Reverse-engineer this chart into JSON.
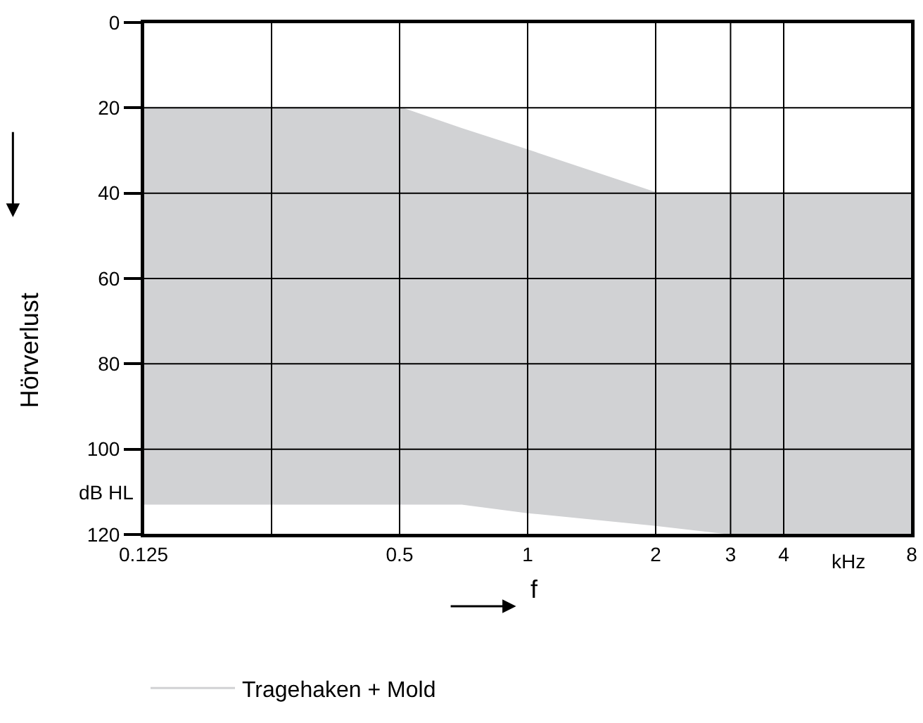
{
  "chart_data": {
    "type": "line",
    "xlabel": "f",
    "ylabel": "Hörverlust",
    "annotations": [
      "dB HL",
      "kHz"
    ],
    "x": [
      0.125,
      0.5,
      0.7,
      1,
      2,
      3,
      8
    ],
    "series": [
      {
        "name": "Tragehaken + Mold",
        "color": "#d1d2d4",
        "values": [
          20,
          20,
          25,
          30,
          40,
          40,
          40
        ],
        "lower": [
          20,
          20,
          25,
          30,
          40,
          40,
          40
        ],
        "upper": [
          113,
          113,
          113,
          115,
          118,
          120,
          120
        ]
      }
    ],
    "log": "x",
    "xlim": [
      0.125,
      8
    ],
    "xticks": [
      0.125,
      {
        "value": 0.25,
        "label": null
      },
      0.5,
      1,
      2,
      3,
      4,
      8
    ],
    "ylim": [
      120,
      0
    ],
    "yticks": [
      0,
      20,
      40,
      60,
      80,
      100,
      120
    ],
    "grid": true,
    "legend": "bottom"
  }
}
